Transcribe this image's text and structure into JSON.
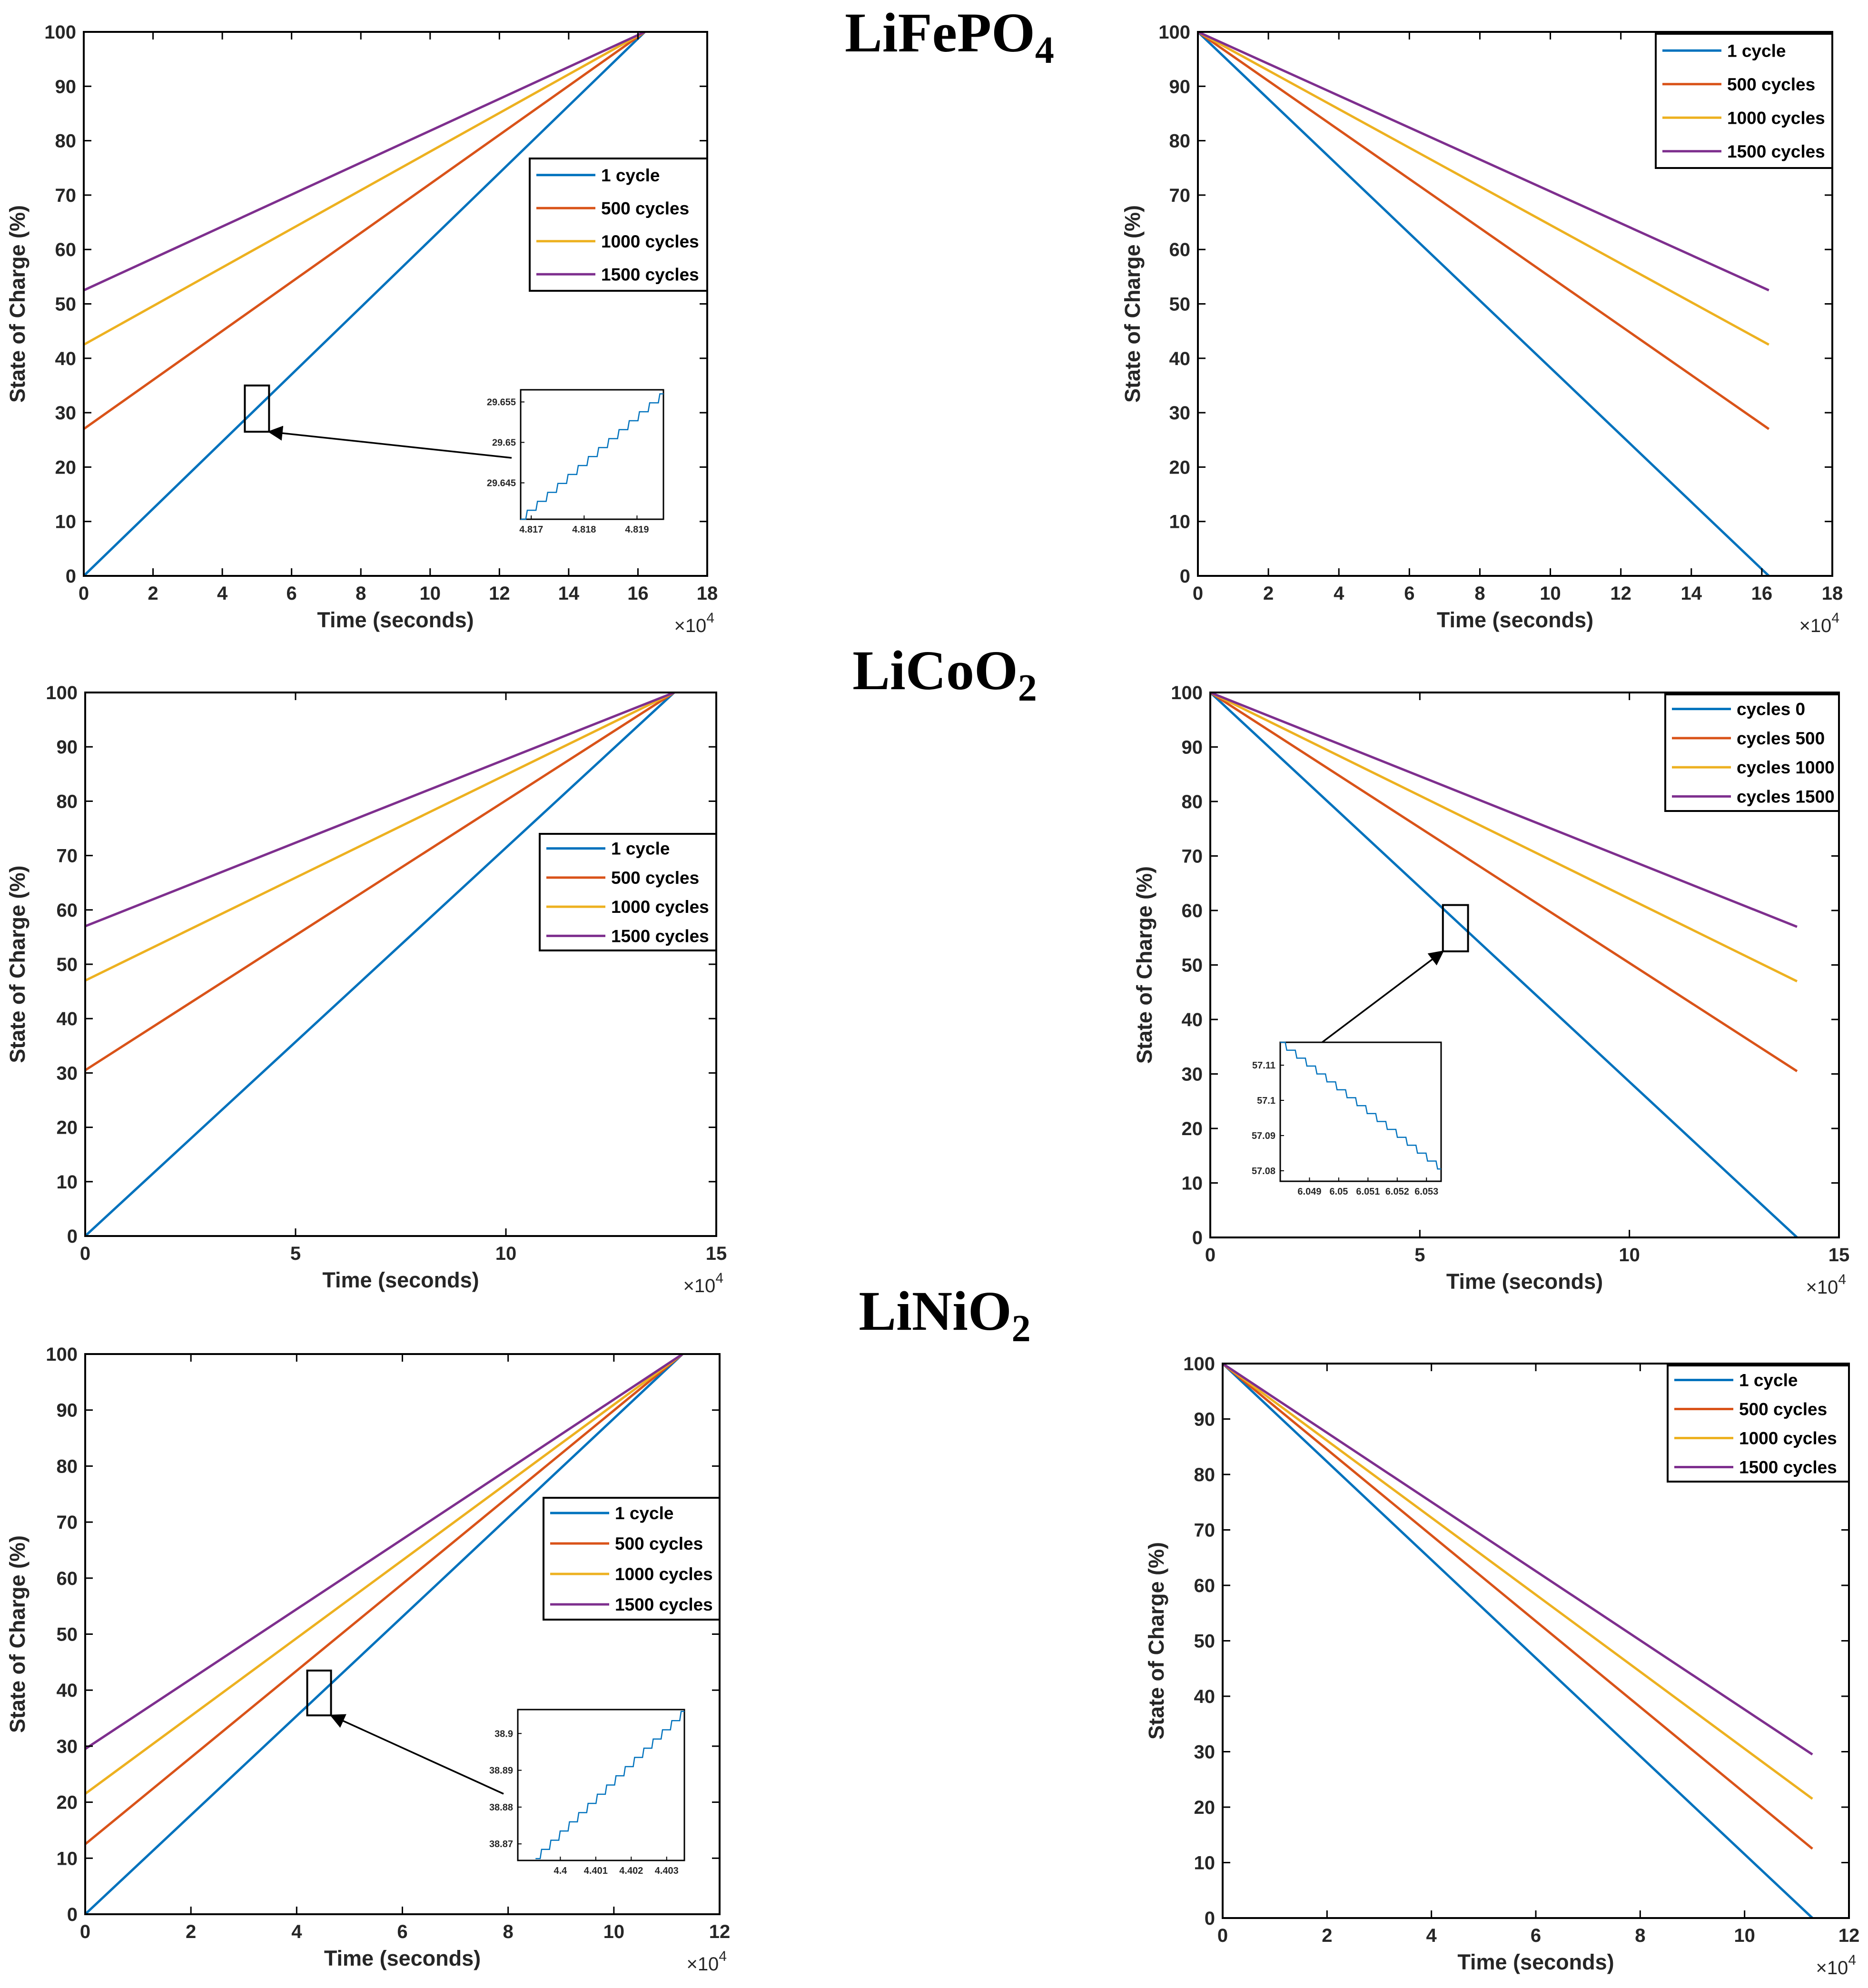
{
  "colors": {
    "c1": "#0072BD",
    "c2": "#D95319",
    "c3": "#EDB120",
    "c4": "#7E2F8E",
    "axis": "#000000"
  },
  "sections": [
    {
      "name": "LiFePO",
      "sub": "4"
    },
    {
      "name": "LiCoO",
      "sub": "2"
    },
    {
      "name": "LiNiO",
      "sub": "2"
    }
  ],
  "chart_data": [
    {
      "id": "lifepo4-charge",
      "type": "line",
      "section": "LiFePO4",
      "mode": "charge",
      "xlabel": "Time (seconds)",
      "ylabel": "State of Charge (%)",
      "x_multiplier": "×10",
      "x_multiplier_exp": "4",
      "xlim": [
        0,
        18
      ],
      "xticks": [
        0,
        2,
        4,
        6,
        8,
        10,
        12,
        14,
        16,
        18
      ],
      "ylim": [
        0,
        100
      ],
      "yticks": [
        0,
        10,
        20,
        30,
        40,
        50,
        60,
        70,
        80,
        90,
        100
      ],
      "legend": {
        "position": "right-middle",
        "entries": [
          "1 cycle",
          "500 cycles",
          "1000 cycles",
          "1500 cycles"
        ]
      },
      "series": [
        {
          "name": "1 cycle",
          "x": [
            0,
            16.2
          ],
          "y": [
            0,
            100
          ]
        },
        {
          "name": "500 cycles",
          "x": [
            0,
            16.2
          ],
          "y": [
            27,
            100
          ]
        },
        {
          "name": "1000 cycles",
          "x": [
            0,
            16.2
          ],
          "y": [
            42.5,
            100
          ]
        },
        {
          "name": "1500 cycles",
          "x": [
            0,
            16.2
          ],
          "y": [
            52.5,
            100
          ]
        }
      ],
      "zoom": {
        "x": [
          4.65,
          5.35
        ],
        "y": [
          26.5,
          35
        ]
      },
      "inset": {
        "xlim": [
          4.8168,
          4.8195
        ],
        "xticks": [
          4.817,
          4.818,
          4.819
        ],
        "xtick_labels": [
          "4.817",
          "4.818",
          "4.819"
        ],
        "ylim": [
          29.6405,
          29.6565
        ],
        "yticks": [
          29.645,
          29.65,
          29.655
        ],
        "ytick_labels": [
          "29.645",
          "29.65",
          "29.655"
        ],
        "line": {
          "x": [
            4.8168,
            4.8195
          ],
          "y": [
            29.6405,
            29.656
          ],
          "steps": 14,
          "direction": "up"
        }
      }
    },
    {
      "id": "lifepo4-discharge",
      "type": "line",
      "section": "LiFePO4",
      "mode": "discharge",
      "xlabel": "Time (seconds)",
      "ylabel": "State of Charge (%)",
      "x_multiplier": "×10",
      "x_multiplier_exp": "4",
      "xlim": [
        0,
        18
      ],
      "xticks": [
        0,
        2,
        4,
        6,
        8,
        10,
        12,
        14,
        16,
        18
      ],
      "ylim": [
        0,
        100
      ],
      "yticks": [
        0,
        10,
        20,
        30,
        40,
        50,
        60,
        70,
        80,
        90,
        100
      ],
      "legend": {
        "position": "top-right",
        "entries": [
          "1 cycle",
          "500 cycles",
          "1000 cycles",
          "1500 cycles"
        ]
      },
      "series": [
        {
          "name": "1 cycle",
          "x": [
            0,
            16.2
          ],
          "y": [
            100,
            0
          ]
        },
        {
          "name": "500 cycles",
          "x": [
            0,
            16.2
          ],
          "y": [
            100,
            27
          ]
        },
        {
          "name": "1000 cycles",
          "x": [
            0,
            16.2
          ],
          "y": [
            100,
            42.5
          ]
        },
        {
          "name": "1500 cycles",
          "x": [
            0,
            16.2
          ],
          "y": [
            100,
            52.5
          ]
        }
      ]
    },
    {
      "id": "licoo2-charge",
      "type": "line",
      "section": "LiCoO2",
      "mode": "charge",
      "xlabel": "Time (seconds)",
      "ylabel": "State of Charge (%)",
      "x_multiplier": "×10",
      "x_multiplier_exp": "4",
      "xlim": [
        0,
        15
      ],
      "xticks": [
        0,
        5,
        10,
        15
      ],
      "ylim": [
        0,
        100
      ],
      "yticks": [
        0,
        10,
        20,
        30,
        40,
        50,
        60,
        70,
        80,
        90,
        100
      ],
      "legend": {
        "position": "right-middle",
        "entries": [
          "1 cycle",
          "500 cycles",
          "1000 cycles",
          "1500 cycles"
        ]
      },
      "series": [
        {
          "name": "1 cycle",
          "x": [
            0,
            14
          ],
          "y": [
            0,
            100
          ]
        },
        {
          "name": "500 cycles",
          "x": [
            0,
            14
          ],
          "y": [
            30.5,
            100
          ]
        },
        {
          "name": "1000 cycles",
          "x": [
            0,
            14
          ],
          "y": [
            47,
            100
          ]
        },
        {
          "name": "1500 cycles",
          "x": [
            0,
            14
          ],
          "y": [
            57,
            100
          ]
        }
      ]
    },
    {
      "id": "licoo2-discharge",
      "type": "line",
      "section": "LiCoO2",
      "mode": "discharge",
      "xlabel": "Time (seconds)",
      "ylabel": "State of Charge (%)",
      "x_multiplier": "×10",
      "x_multiplier_exp": "4",
      "xlim": [
        0,
        15
      ],
      "xticks": [
        0,
        5,
        10,
        15
      ],
      "ylim": [
        0,
        100
      ],
      "yticks": [
        0,
        10,
        20,
        30,
        40,
        50,
        60,
        70,
        80,
        90,
        100
      ],
      "legend": {
        "position": "top-right",
        "entries": [
          "cycles 0",
          "cycles 500",
          "cycles 1000",
          "cycles 1500"
        ]
      },
      "series": [
        {
          "name": "cycles 0",
          "x": [
            0,
            14
          ],
          "y": [
            100,
            0
          ]
        },
        {
          "name": "cycles 500",
          "x": [
            0,
            14
          ],
          "y": [
            100,
            30.5
          ]
        },
        {
          "name": "cycles 1000",
          "x": [
            0,
            14
          ],
          "y": [
            100,
            47
          ]
        },
        {
          "name": "cycles 1500",
          "x": [
            0,
            14
          ],
          "y": [
            100,
            57
          ]
        }
      ],
      "zoom": {
        "x": [
          5.55,
          6.15
        ],
        "y": [
          52.5,
          61
        ]
      },
      "inset": {
        "xlim": [
          6.048,
          6.0535
        ],
        "xticks": [
          6.049,
          6.05,
          6.051,
          6.052,
          6.053
        ],
        "xtick_labels": [
          "6.049",
          "6.05",
          "6.051",
          "6.052",
          "6.053"
        ],
        "ylim": [
          57.077,
          57.1165
        ],
        "yticks": [
          57.08,
          57.09,
          57.1,
          57.11
        ],
        "ytick_labels": [
          "57.08",
          "57.09",
          "57.1",
          "57.11"
        ],
        "line": {
          "x": [
            6.048,
            6.0535
          ],
          "y": [
            57.1165,
            57.0805
          ],
          "steps": 16,
          "direction": "down"
        }
      }
    },
    {
      "id": "linio2-charge",
      "type": "line",
      "section": "LiNiO2",
      "mode": "charge",
      "xlabel": "Time (seconds)",
      "ylabel": "State of Charge (%)",
      "x_multiplier": "×10",
      "x_multiplier_exp": "4",
      "xlim": [
        0,
        12
      ],
      "xticks": [
        0,
        2,
        4,
        6,
        8,
        10,
        12
      ],
      "ylim": [
        0,
        100
      ],
      "yticks": [
        0,
        10,
        20,
        30,
        40,
        50,
        60,
        70,
        80,
        90,
        100
      ],
      "legend": {
        "position": "right-middle",
        "entries": [
          "1 cycle",
          "500 cycles",
          "1000 cycles",
          "1500 cycles"
        ]
      },
      "series": [
        {
          "name": "1 cycle",
          "x": [
            0,
            11.3
          ],
          "y": [
            0,
            100
          ]
        },
        {
          "name": "500 cycles",
          "x": [
            0,
            11.3
          ],
          "y": [
            12.5,
            100
          ]
        },
        {
          "name": "1000 cycles",
          "x": [
            0,
            11.3
          ],
          "y": [
            21.5,
            100
          ]
        },
        {
          "name": "1500 cycles",
          "x": [
            0,
            11.3
          ],
          "y": [
            29.5,
            100
          ]
        }
      ],
      "zoom": {
        "x": [
          4.2,
          4.65
        ],
        "y": [
          35.5,
          43.5
        ]
      },
      "inset": {
        "xlim": [
          4.3988,
          4.4035
        ],
        "xticks": [
          4.4,
          4.401,
          4.402,
          4.403
        ],
        "xtick_labels": [
          "4.4",
          "4.401",
          "4.402",
          "4.403"
        ],
        "ylim": [
          38.8655,
          38.9065
        ],
        "yticks": [
          38.87,
          38.88,
          38.89,
          38.9
        ],
        "ytick_labels": [
          "38.87",
          "38.88",
          "38.89",
          "38.9"
        ],
        "line": {
          "x": [
            4.3993,
            4.4035
          ],
          "y": [
            38.866,
            38.906
          ],
          "steps": 16,
          "direction": "up"
        }
      }
    },
    {
      "id": "linio2-discharge",
      "type": "line",
      "section": "LiNiO2",
      "mode": "discharge",
      "xlabel": "Time (seconds)",
      "ylabel": "State of Charge (%)",
      "x_multiplier": "×10",
      "x_multiplier_exp": "4",
      "xlim": [
        0,
        12
      ],
      "xticks": [
        0,
        2,
        4,
        6,
        8,
        10,
        12
      ],
      "ylim": [
        0,
        100
      ],
      "yticks": [
        0,
        10,
        20,
        30,
        40,
        50,
        60,
        70,
        80,
        90,
        100
      ],
      "legend": {
        "position": "top-right",
        "entries": [
          "1 cycle",
          "500 cycles",
          "1000 cycles",
          "1500 cycles"
        ]
      },
      "series": [
        {
          "name": "1 cycle",
          "x": [
            0,
            11.3
          ],
          "y": [
            100,
            0
          ]
        },
        {
          "name": "500 cycles",
          "x": [
            0,
            11.3
          ],
          "y": [
            100,
            12.5
          ]
        },
        {
          "name": "1000 cycles",
          "x": [
            0,
            11.3
          ],
          "y": [
            100,
            21.5
          ]
        },
        {
          "name": "1500 cycles",
          "x": [
            0,
            11.3
          ],
          "y": [
            100,
            29.5
          ]
        }
      ]
    }
  ]
}
